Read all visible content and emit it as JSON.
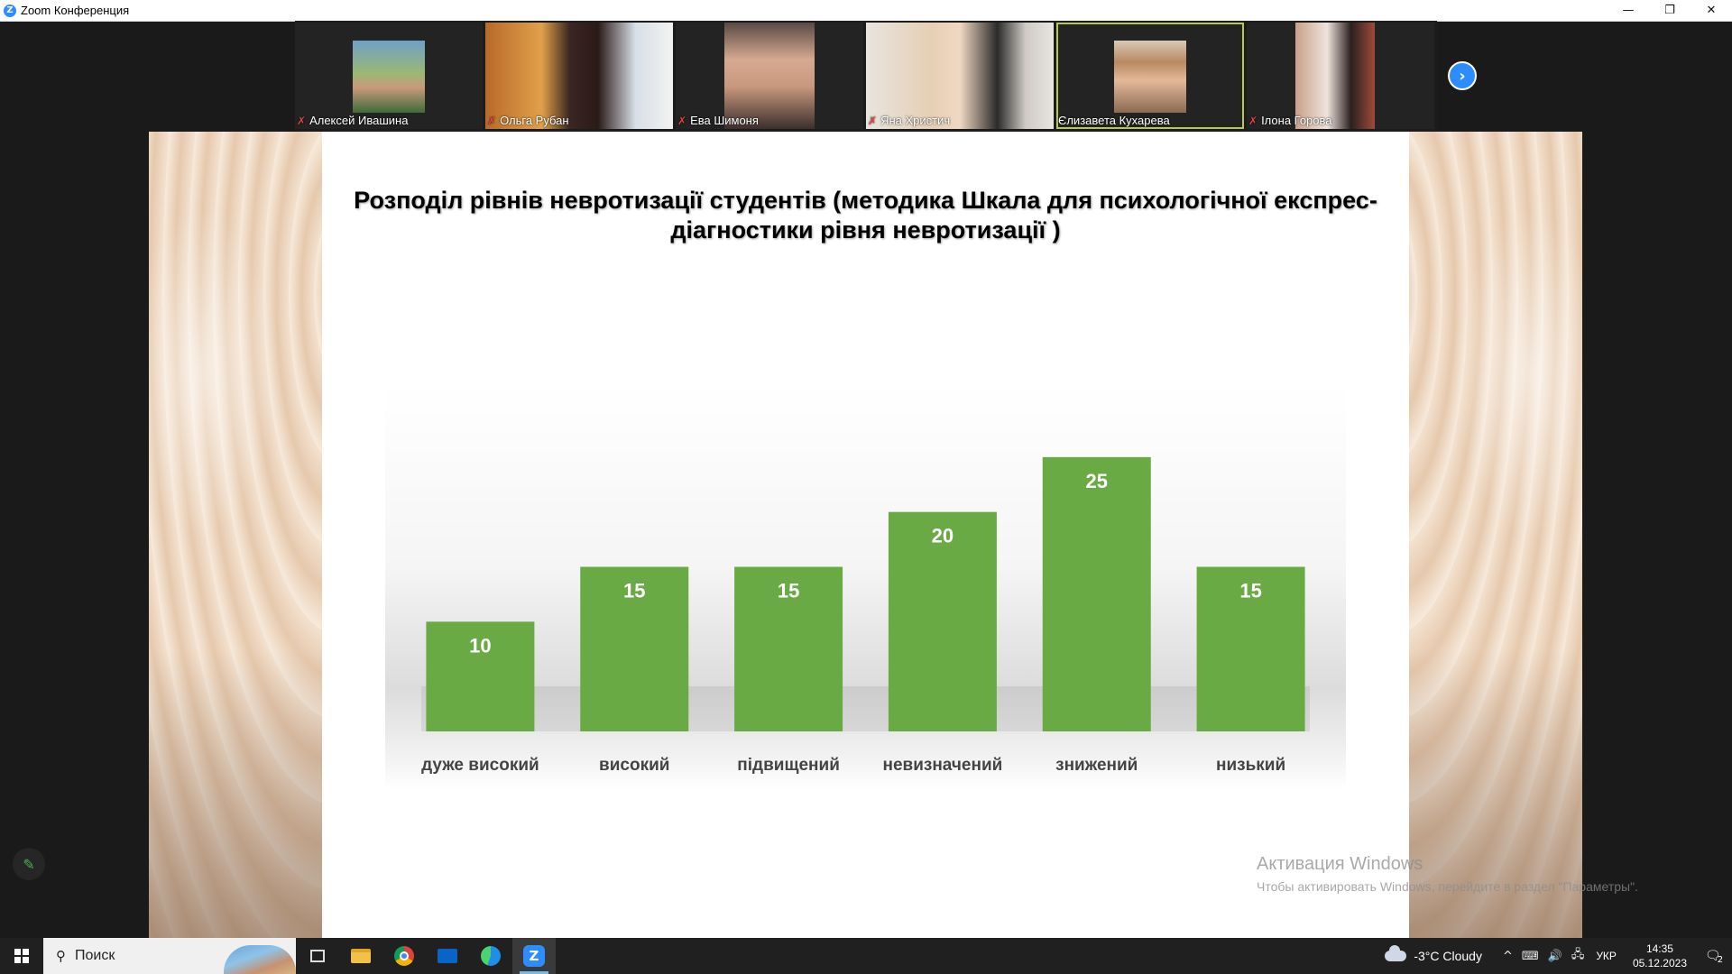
{
  "window": {
    "app_icon": "Z",
    "title": "Zoom Конференция",
    "icons": [
      "minimize-icon",
      "restore-icon",
      "close-icon"
    ],
    "minimize_glyph": "—",
    "restore_glyph": "❐",
    "close_glyph": "✕"
  },
  "participants": [
    {
      "name": "Алексей Ивашина",
      "muted": true
    },
    {
      "name": "Ольга Рубан",
      "muted": true
    },
    {
      "name": "Ева Шимоня",
      "muted": true
    },
    {
      "name": "Яна Христич",
      "muted": true
    },
    {
      "name": "Єлизавета Кухарева",
      "muted": false,
      "active_speaker": true
    },
    {
      "name": "Ілона Горова",
      "muted": true
    }
  ],
  "strip_next_glyph": "›",
  "slide": {
    "title": "Розподіл рівнів невротизації студентів (методика Шкала для психологічної експрес-діагностики рівня невротизації )"
  },
  "chart_data": {
    "type": "bar",
    "categories": [
      "дуже високий",
      "високий",
      "підвищений",
      "невизначений",
      "знижений",
      "низький"
    ],
    "values": [
      10,
      15,
      15,
      20,
      25,
      15
    ],
    "ylim": [
      0,
      30
    ],
    "grid": false,
    "legend": "none",
    "bar_color": "#6aaa45"
  },
  "watermark": {
    "title": "Активация Windows",
    "subtitle": "Чтобы активировать Windows, перейдите в раздел \"Параметры\"."
  },
  "pen_glyph": "✎",
  "taskbar": {
    "search_icon": "search-icon",
    "search_glyph": "⚲",
    "search_placeholder": "Поиск",
    "apps": [
      "task-view-icon",
      "file-explorer-icon",
      "chrome-icon",
      "mail-icon",
      "edge-icon",
      "zoom-icon"
    ],
    "weather": "-3°C  Cloudy",
    "tray_up_glyph": "^",
    "tray_glyphs": [
      "⌨",
      "🔊",
      "🖧"
    ],
    "language": "УКР",
    "time": "14:35",
    "date": "05.12.2023",
    "notification_count": "2",
    "notification_glyph": "🗨"
  },
  "colors": {
    "accent": "#2d8cff",
    "bar": "#6aaa45",
    "active_speaker_border": "#b6c94a"
  }
}
